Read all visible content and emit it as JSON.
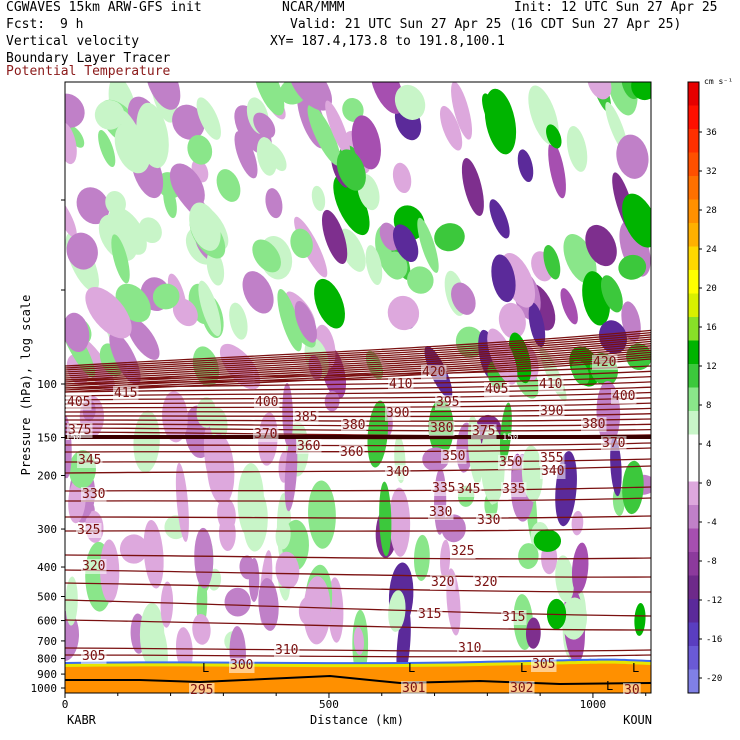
{
  "header": {
    "model": "CGWAVES 15km ARW-GFS init",
    "center": "NCAR/MMM",
    "init": "Init: 12 UTC Sun 27 Apr 25",
    "fcst_label": "Fcst:",
    "fcst_value": "9 h",
    "valid": "Valid: 21 UTC Sun 27 Apr 25 (16 CDT Sun 27 Apr 25)",
    "field1": "Vertical velocity",
    "xy": "XY= 187.4,173.8 to 191.8,100.1",
    "field2": "Boundary Layer Tracer",
    "field3": "Potential Temperature"
  },
  "chart_data": {
    "type": "heatmap",
    "xlabel": "Distance (km)",
    "ylabel": "Pressure (hPa), log scale",
    "x_ticks": [
      0,
      500,
      1000
    ],
    "xlim": [
      0,
      1110
    ],
    "y_ticks": [
      100,
      150,
      200,
      300,
      400,
      500,
      600,
      700,
      800,
      900,
      1000
    ],
    "y_log": true,
    "endpoints": {
      "left": "KABR",
      "right": "KOUN"
    },
    "colorbar": {
      "unit": "cm s⁻¹",
      "ticks": [
        -20,
        -16,
        -12,
        -8,
        -4,
        0,
        4,
        8,
        12,
        16,
        20,
        24,
        28,
        32,
        36
      ],
      "colors": [
        "#8080e6",
        "#6a5ad6",
        "#5a3ec0",
        "#5b2a9a",
        "#6e2a8a",
        "#8c3a9c",
        "#a64fb0",
        "#c080c8",
        "#dda8dd",
        "#ffffff",
        "#ffffff",
        "#c8f5c8",
        "#8ae68a",
        "#3cc83c",
        "#00b400",
        "#88e028",
        "#d8f000",
        "#ffff00",
        "#ffd800",
        "#ffb000",
        "#ff9000",
        "#ff7000",
        "#ff5000",
        "#ff3000",
        "#ff1000",
        "#e60000"
      ]
    },
    "theta_labels": [
      "415",
      "405",
      "400",
      "410",
      "420",
      "405",
      "410",
      "420",
      "400",
      "390",
      "380",
      "395",
      "385",
      "390",
      "380",
      "375",
      "370",
      "360",
      "380",
      "375",
      "370",
      "360",
      "350",
      "345",
      "355",
      "350",
      "340",
      "340",
      "345",
      "330",
      "335",
      "335",
      "330",
      "330",
      "325",
      "325",
      "320",
      "320",
      "320",
      "315",
      "315",
      "310",
      "310",
      "305",
      "305",
      "300",
      "301",
      "302",
      "295",
      "30"
    ],
    "theta_labels_150": [
      "150",
      "150"
    ],
    "low_markers": [
      "L",
      "L",
      "L",
      "L",
      "L"
    ]
  }
}
